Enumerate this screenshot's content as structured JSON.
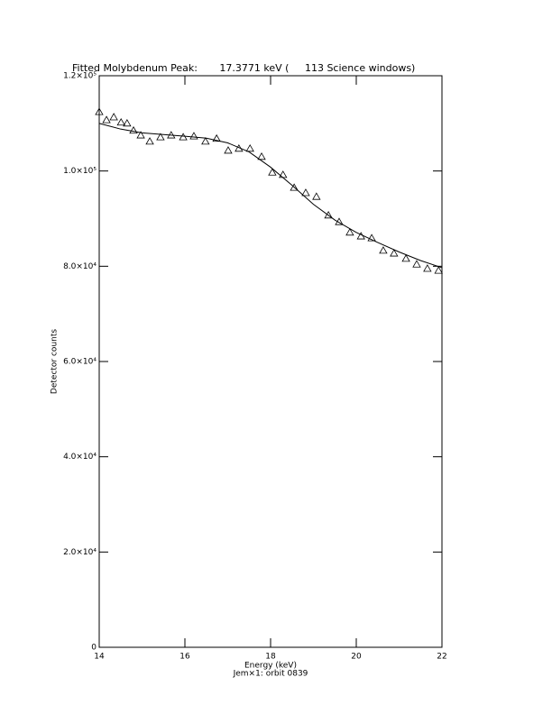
{
  "chart_data": {
    "type": "scatter",
    "title": "Fitted Molybdenum Peak:       17.3771 keV (     113 Science windows)",
    "x_label": "Energy (keV)",
    "x_sublabel": "Jem×1: orbit 0839",
    "y_label": "Detector counts",
    "xlim": [
      14,
      22
    ],
    "xticks": [
      14,
      16,
      18,
      20,
      22
    ],
    "ylim": [
      0,
      120000
    ],
    "yticks": [
      0,
      {
        "value": 20000,
        "label": "2.0×10⁴"
      },
      {
        "value": 40000,
        "label": "4.0×10⁴"
      },
      {
        "value": 60000,
        "label": "6.0×10⁴"
      },
      {
        "value": 80000,
        "label": "8.0×10⁴"
      },
      {
        "value": 100000,
        "label": "1.0×10⁵"
      },
      {
        "value": 120000,
        "label": "1.2×10⁵"
      }
    ],
    "color": "#000000",
    "series": [
      {
        "type": "scatter",
        "x": [
          14.0,
          14.17,
          14.34,
          14.51,
          14.65,
          14.8,
          14.97,
          15.18,
          15.43,
          15.68,
          15.96,
          16.21,
          16.48,
          16.74,
          17.01,
          17.26,
          17.52,
          17.79,
          18.04,
          18.29,
          18.55,
          18.82,
          19.07,
          19.35,
          19.6,
          19.85,
          20.11,
          20.36,
          20.63,
          20.88,
          21.16,
          21.41,
          21.66,
          21.92
        ],
        "values": [
          112400,
          110700,
          111300,
          110200,
          110000,
          108500,
          107500,
          106200,
          107100,
          107500,
          107100,
          107300,
          106200,
          106800,
          104300,
          104700,
          104700,
          103000,
          99700,
          99200,
          96500,
          95400,
          94600,
          90700,
          89300,
          87100,
          86300,
          85900,
          83300,
          82700,
          81600,
          80400,
          79500,
          79100
        ]
      },
      {
        "type": "line",
        "x": [
          14.0,
          14.5,
          15.0,
          16.0,
          16.5,
          17.0,
          17.5,
          18.0,
          18.5,
          19.0,
          19.5,
          20.0,
          20.5,
          21.0,
          21.5,
          22.0
        ],
        "values": [
          110000,
          108800,
          108000,
          107300,
          106900,
          105900,
          104000,
          100800,
          97000,
          93000,
          89700,
          87100,
          85000,
          83000,
          81200,
          79700
        ]
      }
    ]
  }
}
